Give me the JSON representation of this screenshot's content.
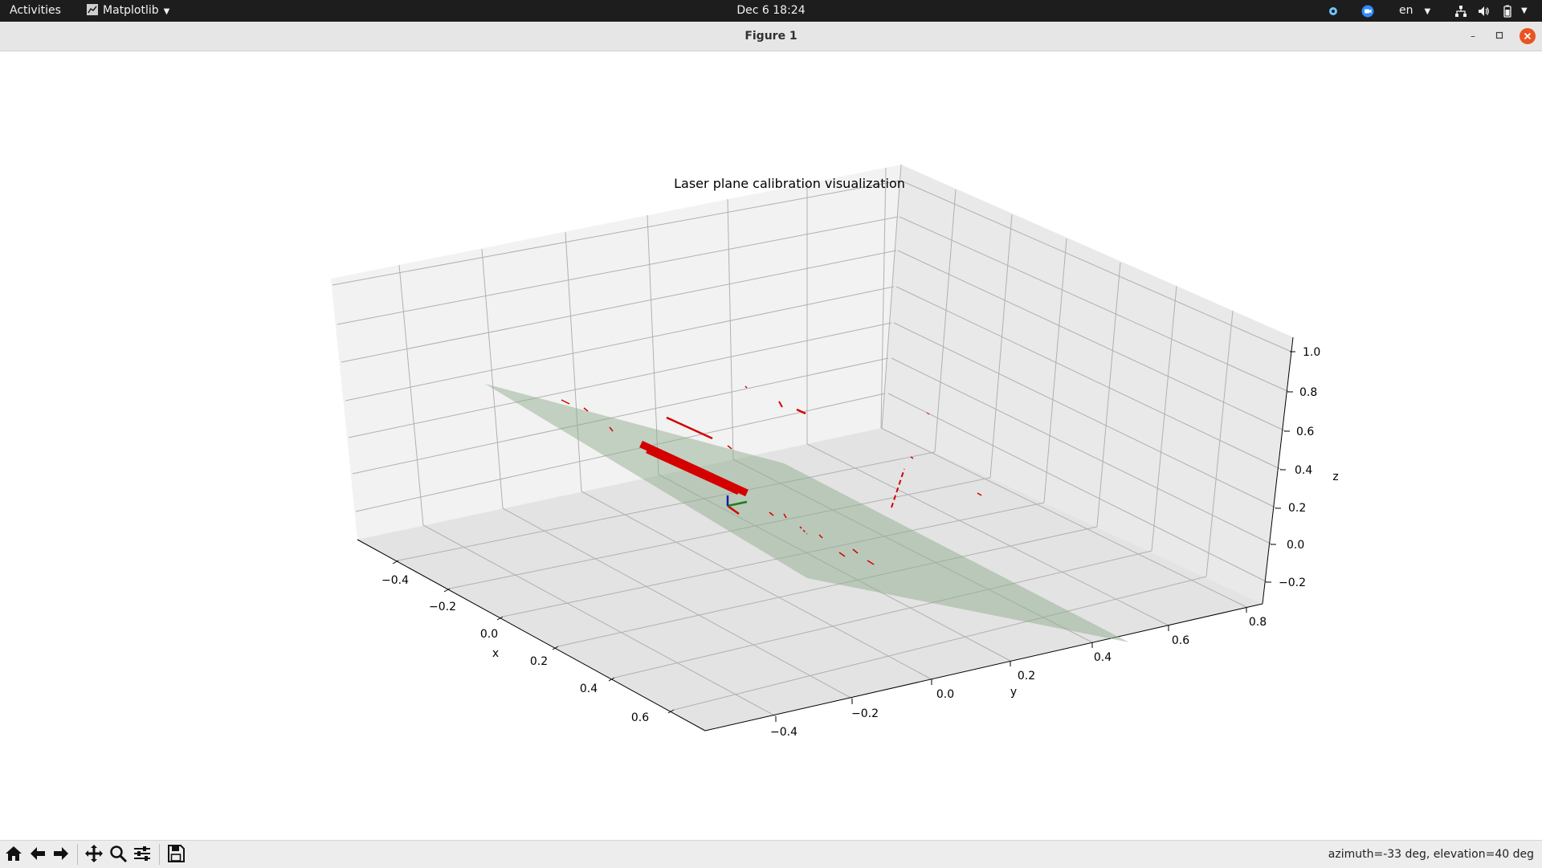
{
  "topbar": {
    "activities": "Activities",
    "app_name": "Matplotlib",
    "clock": "Dec 6  18:24",
    "language": "en"
  },
  "window": {
    "title": "Figure 1",
    "minimize": "–",
    "maximize": "▫"
  },
  "chart_data": {
    "type": "scatter3d",
    "title": "Laser plane calibration visualization",
    "xlabel": "x",
    "ylabel": "y",
    "zlabel": "z",
    "x_ticks": [
      "−0.4",
      "−0.2",
      "0.0",
      "0.2",
      "0.4",
      "0.6"
    ],
    "y_ticks": [
      "−0.4",
      "−0.2",
      "0.0",
      "0.2",
      "0.4",
      "0.6",
      "0.8"
    ],
    "z_ticks": [
      "−0.2",
      "0.0",
      "0.2",
      "0.4",
      "0.6",
      "0.8",
      "1.0"
    ],
    "plane_color": "#8fae8f",
    "points_color": "#d40000",
    "grid": true
  },
  "toolbar": {
    "status": "azimuth=-33 deg, elevation=40 deg"
  },
  "colors": {
    "topbar_bg": "#1d1d1d",
    "titlebar_bg": "#e6e6e6",
    "close_accent": "#e95420"
  }
}
